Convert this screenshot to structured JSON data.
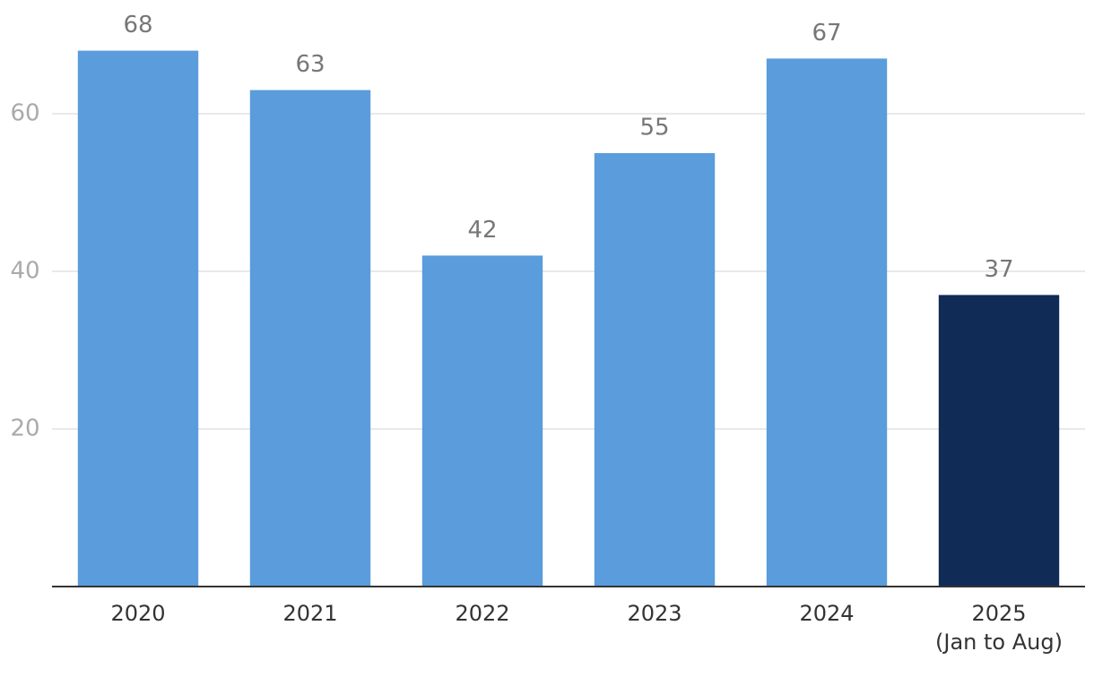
{
  "chart_data": {
    "type": "bar",
    "categories": [
      "2020",
      "2021",
      "2022",
      "2023",
      "2024",
      "2025\n(Jan to Aug)"
    ],
    "values": [
      68,
      63,
      42,
      55,
      67,
      37
    ],
    "colors": [
      "#5a9cdc",
      "#5a9cdc",
      "#5a9cdc",
      "#5a9cdc",
      "#5a9cdc",
      "#0f2b56"
    ],
    "ylim": [
      0,
      75
    ],
    "yticks": [
      20,
      40,
      60
    ],
    "grid": true
  }
}
